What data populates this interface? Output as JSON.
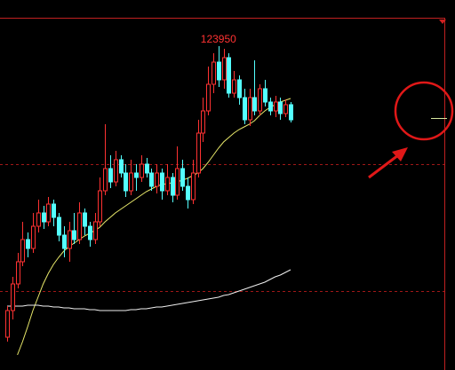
{
  "chart_data": {
    "type": "candlestick",
    "ylim": [
      120300,
      124470
    ],
    "up_color": "#ff3232",
    "down_color": "#54ffff",
    "open": [
      120670,
      120970,
      121270,
      121520,
      121770,
      121670,
      121920,
      122070,
      121970,
      122170,
      122020,
      121820,
      121670,
      121870,
      121770,
      122070,
      121920,
      121770,
      121970,
      122320,
      122570,
      122420,
      122670,
      122520,
      122320,
      122520,
      122470,
      122620,
      122520,
      122370,
      122520,
      122320,
      122470,
      122270,
      122570,
      122370,
      122220,
      122520,
      122970,
      123220,
      123520,
      123770,
      123570,
      123820,
      123420,
      123570,
      123370,
      123120,
      123370,
      123220,
      123470,
      123320,
      123220,
      123320,
      123190,
      123290
    ],
    "high": [
      121020,
      121350,
      121620,
      121970,
      121850,
      122070,
      122220,
      122150,
      122250,
      122220,
      122070,
      121920,
      121970,
      122070,
      122190,
      122120,
      121970,
      122070,
      122470,
      123070,
      122720,
      122770,
      122720,
      122620,
      122670,
      122620,
      122720,
      122690,
      122570,
      122620,
      122570,
      122620,
      122520,
      122820,
      122670,
      122470,
      122670,
      123120,
      123370,
      123720,
      123870,
      123950,
      123920,
      123870,
      123670,
      123620,
      123470,
      123470,
      123790,
      123520,
      123570,
      123370,
      123390,
      123370,
      123350,
      123320
    ],
    "low": [
      120620,
      120870,
      121220,
      121470,
      121570,
      121620,
      121850,
      121890,
      121920,
      121920,
      121750,
      121570,
      121520,
      121720,
      121720,
      121820,
      121690,
      121720,
      121920,
      122270,
      122350,
      122370,
      122470,
      122250,
      122270,
      122320,
      122420,
      122470,
      122320,
      122290,
      122220,
      122270,
      122190,
      122220,
      122320,
      122120,
      122170,
      122470,
      122870,
      123170,
      123420,
      123490,
      123470,
      123370,
      123370,
      123290,
      123070,
      123050,
      123170,
      123170,
      123270,
      123170,
      123150,
      123120,
      123150,
      123090
    ],
    "close": [
      120970,
      121270,
      121520,
      121770,
      121670,
      121920,
      122070,
      121970,
      122170,
      122020,
      121820,
      121670,
      121870,
      121770,
      122070,
      121920,
      121770,
      121970,
      122320,
      122570,
      122420,
      122670,
      122520,
      122320,
      122520,
      122470,
      122620,
      122520,
      122370,
      122520,
      122320,
      122470,
      122270,
      122570,
      122370,
      122220,
      122520,
      122970,
      123220,
      123520,
      123770,
      123570,
      123820,
      123420,
      123570,
      123370,
      123120,
      123370,
      123220,
      123470,
      123320,
      123220,
      123320,
      123190,
      123290,
      123120
    ],
    "series": [
      {
        "color": "#e8e86a",
        "values": [
          null,
          null,
          120470,
          120620,
          120790,
          120970,
          121120,
          121270,
          121390,
          121490,
          121570,
          121640,
          121690,
          121730,
          121770,
          121810,
          121840,
          121870,
          121910,
          121970,
          122020,
          122070,
          122110,
          122150,
          122190,
          122230,
          122270,
          122310,
          122340,
          122370,
          122390,
          122400,
          122410,
          122420,
          122440,
          122460,
          122490,
          122520,
          122570,
          122640,
          122720,
          122800,
          122870,
          122920,
          122970,
          123010,
          123040,
          123070,
          123110,
          123170,
          123220,
          123260,
          123290,
          123320,
          123340,
          123360
        ]
      },
      {
        "color": "#f0f0f0",
        "values": [
          121020,
          121020,
          121020,
          121020,
          121030,
          121030,
          121030,
          121020,
          121020,
          121010,
          121010,
          121000,
          121000,
          120990,
          120990,
          120990,
          120980,
          120980,
          120970,
          120970,
          120970,
          120970,
          120970,
          120970,
          120980,
          120980,
          120990,
          120990,
          121000,
          121010,
          121010,
          121020,
          121030,
          121040,
          121050,
          121060,
          121070,
          121080,
          121090,
          121100,
          121110,
          121120,
          121140,
          121150,
          121170,
          121190,
          121210,
          121230,
          121250,
          121270,
          121290,
          121320,
          121350,
          121370,
          121400,
          121430
        ]
      }
    ]
  }
}
